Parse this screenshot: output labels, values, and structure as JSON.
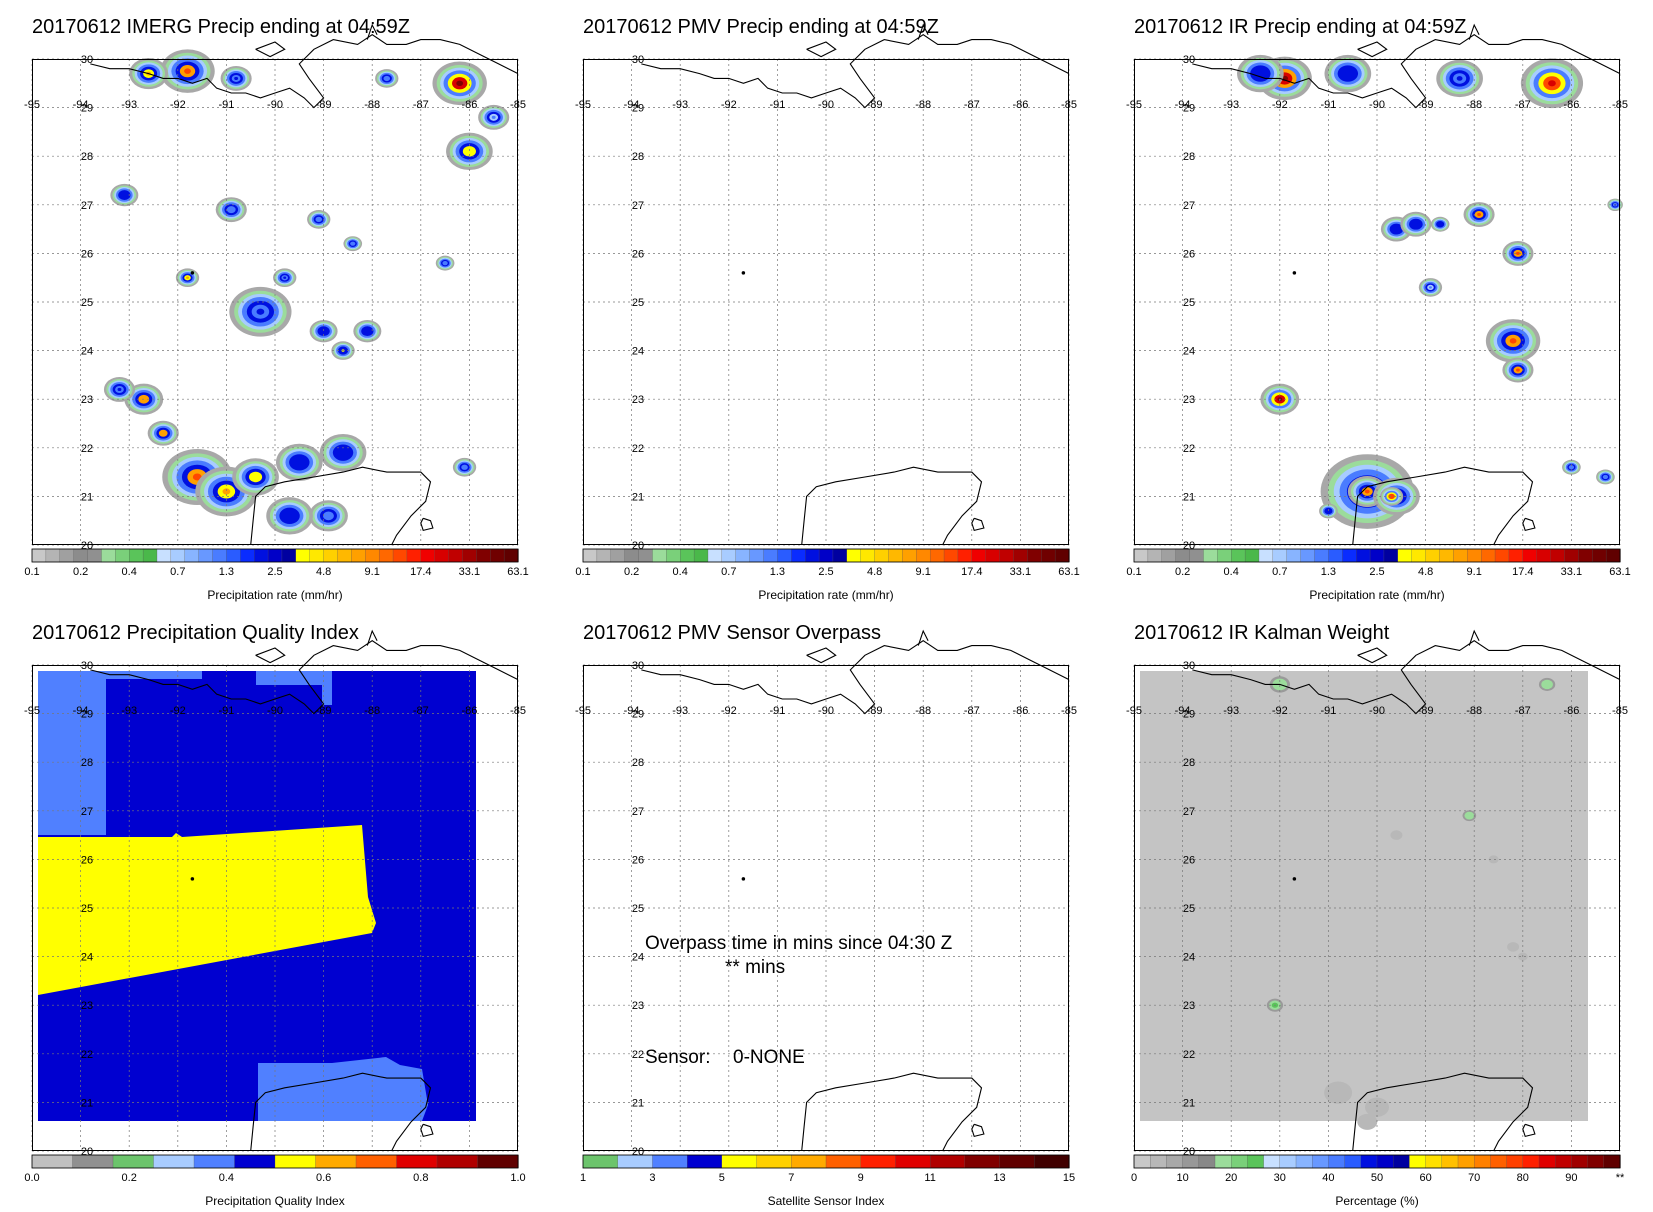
{
  "axes": {
    "lon": [
      -95,
      -94,
      -93,
      -92,
      -91,
      -90,
      -89,
      -88,
      -87,
      -86,
      -85
    ],
    "lat": [
      20,
      21,
      22,
      23,
      24,
      25,
      26,
      27,
      28,
      29,
      30
    ],
    "lon_labels": [
      "-95",
      "-94",
      "-93",
      "-92",
      "-91",
      "-90",
      "-89",
      "-88",
      "-87",
      "-86",
      "-85"
    ],
    "lat_labels": [
      "20",
      "21",
      "22",
      "23",
      "24",
      "25",
      "26",
      "27",
      "28",
      "29",
      "30"
    ]
  },
  "colorbars": {
    "precip": {
      "title": "Precipitation rate (mm/hr)",
      "labels": [
        "0.1",
        "0.2",
        "0.4",
        "0.7",
        "1.3",
        "2.5",
        "4.8",
        "9.1",
        "17.4",
        "33.1",
        "63.1"
      ],
      "colors": [
        "#c8c8c8",
        "#b4b4b4",
        "#a0a0a0",
        "#8c8c8c",
        "#909090",
        "#9bdc9b",
        "#7ad07a",
        "#5ac45a",
        "#4ab84a",
        "#c8e0ff",
        "#a8ccff",
        "#88b4ff",
        "#6898ff",
        "#4a7cff",
        "#2a5cff",
        "#0a2cff",
        "#0010e0",
        "#0000c8",
        "#0000a0",
        "#ffff00",
        "#ffe800",
        "#ffd000",
        "#ffb800",
        "#ffa000",
        "#ff8800",
        "#ff6800",
        "#ff4800",
        "#ff2000",
        "#f00000",
        "#d80000",
        "#c00000",
        "#a00000",
        "#800000",
        "#700000",
        "#600000"
      ]
    },
    "pqi": {
      "title": "Precipitation Quality Index",
      "labels": [
        "0.0",
        "0.2",
        "0.4",
        "0.6",
        "0.8",
        "1.0"
      ],
      "colors": [
        "#c0c0c0",
        "#909090",
        "#6cc46c",
        "#a8ccff",
        "#5080ff",
        "#0000d0",
        "#ffff00",
        "#ffaa00",
        "#ff6000",
        "#e00000",
        "#b00000",
        "#600000"
      ]
    },
    "sensor": {
      "title": "Satellite Sensor Index",
      "labels": [
        "1",
        "3",
        "5",
        "7",
        "9",
        "11",
        "13",
        "15"
      ],
      "colors": [
        "#6cc46c",
        "#a8ccff",
        "#5080ff",
        "#0000d0",
        "#ffff00",
        "#ffd000",
        "#ffaa00",
        "#ff6000",
        "#ff2000",
        "#e00000",
        "#b00000",
        "#800000",
        "#600000",
        "#400000"
      ]
    },
    "kalman": {
      "title": "Percentage (%)",
      "labels": [
        "0",
        "10",
        "20",
        "30",
        "40",
        "50",
        "60",
        "70",
        "80",
        "90",
        "**"
      ],
      "colors": [
        "#c8c8c8",
        "#b8b8b8",
        "#a8a8a8",
        "#989898",
        "#888888",
        "#9bdc9b",
        "#7ad07a",
        "#5ac45a",
        "#c8e0ff",
        "#a8ccff",
        "#88b4ff",
        "#6898ff",
        "#4a7cff",
        "#2a5cff",
        "#0010e0",
        "#0000c8",
        "#0000a0",
        "#ffff00",
        "#ffe000",
        "#ffc000",
        "#ffa000",
        "#ff8000",
        "#ff6000",
        "#ff4000",
        "#ff2000",
        "#e00000",
        "#c00000",
        "#a00000",
        "#800000",
        "#600000"
      ]
    }
  },
  "panels": [
    {
      "title": "20170612 IMERG Precip ending at 04:59Z",
      "colorbar": "precip",
      "field": "imerg",
      "blobs": [
        {
          "lon": -91.8,
          "lat": 29.75,
          "r": 0.35,
          "v": 0.85
        },
        {
          "lon": -92.6,
          "lat": 29.7,
          "r": 0.25,
          "v": 0.75
        },
        {
          "lon": -90.8,
          "lat": 29.6,
          "r": 0.2,
          "v": 0.55
        },
        {
          "lon": -86.2,
          "lat": 29.5,
          "r": 0.35,
          "v": 0.95
        },
        {
          "lon": -87.7,
          "lat": 29.6,
          "r": 0.15,
          "v": 0.45
        },
        {
          "lon": -86.0,
          "lat": 28.1,
          "r": 0.3,
          "v": 0.72
        },
        {
          "lon": -85.5,
          "lat": 28.8,
          "r": 0.2,
          "v": 0.4
        },
        {
          "lon": -93.1,
          "lat": 27.2,
          "r": 0.18,
          "v": 0.6
        },
        {
          "lon": -90.9,
          "lat": 26.9,
          "r": 0.2,
          "v": 0.5
        },
        {
          "lon": -89.1,
          "lat": 26.7,
          "r": 0.15,
          "v": 0.5
        },
        {
          "lon": -88.4,
          "lat": 26.2,
          "r": 0.12,
          "v": 0.45
        },
        {
          "lon": -86.5,
          "lat": 25.8,
          "r": 0.12,
          "v": 0.5
        },
        {
          "lon": -91.8,
          "lat": 25.5,
          "r": 0.15,
          "v": 0.75
        },
        {
          "lon": -89.8,
          "lat": 25.5,
          "r": 0.15,
          "v": 0.55
        },
        {
          "lon": -90.3,
          "lat": 24.8,
          "r": 0.4,
          "v": 0.55
        },
        {
          "lon": -89.0,
          "lat": 24.4,
          "r": 0.18,
          "v": 0.65
        },
        {
          "lon": -88.1,
          "lat": 24.4,
          "r": 0.18,
          "v": 0.6
        },
        {
          "lon": -88.6,
          "lat": 24.0,
          "r": 0.15,
          "v": 0.7
        },
        {
          "lon": -92.7,
          "lat": 23.0,
          "r": 0.25,
          "v": 0.82
        },
        {
          "lon": -93.2,
          "lat": 23.2,
          "r": 0.2,
          "v": 0.55
        },
        {
          "lon": -92.3,
          "lat": 22.3,
          "r": 0.2,
          "v": 0.8
        },
        {
          "lon": -91.6,
          "lat": 21.4,
          "r": 0.45,
          "v": 0.84
        },
        {
          "lon": -91.0,
          "lat": 21.1,
          "r": 0.4,
          "v": 0.78
        },
        {
          "lon": -90.4,
          "lat": 21.4,
          "r": 0.3,
          "v": 0.72
        },
        {
          "lon": -89.5,
          "lat": 21.7,
          "r": 0.3,
          "v": 0.65
        },
        {
          "lon": -88.6,
          "lat": 21.9,
          "r": 0.3,
          "v": 0.6
        },
        {
          "lon": -88.9,
          "lat": 20.6,
          "r": 0.25,
          "v": 0.5
        },
        {
          "lon": -89.7,
          "lat": 20.6,
          "r": 0.3,
          "v": 0.6
        },
        {
          "lon": -86.1,
          "lat": 21.6,
          "r": 0.15,
          "v": 0.45
        }
      ]
    },
    {
      "title": "20170612 PMV Precip ending at 04:59Z",
      "colorbar": "precip",
      "field": "none",
      "blobs": []
    },
    {
      "title": "20170612 IR Precip ending at 04:59Z",
      "colorbar": "precip",
      "field": "ir",
      "blobs": [
        {
          "lon": -91.9,
          "lat": 29.6,
          "r": 0.35,
          "v": 0.97
        },
        {
          "lon": -92.4,
          "lat": 29.7,
          "r": 0.3,
          "v": 0.65
        },
        {
          "lon": -90.6,
          "lat": 29.7,
          "r": 0.3,
          "v": 0.6
        },
        {
          "lon": -88.3,
          "lat": 29.6,
          "r": 0.3,
          "v": 0.55
        },
        {
          "lon": -86.4,
          "lat": 29.5,
          "r": 0.4,
          "v": 0.9
        },
        {
          "lon": -89.6,
          "lat": 26.5,
          "r": 0.2,
          "v": 0.6
        },
        {
          "lon": -89.2,
          "lat": 26.6,
          "r": 0.2,
          "v": 0.65
        },
        {
          "lon": -88.7,
          "lat": 26.6,
          "r": 0.12,
          "v": 0.6
        },
        {
          "lon": -87.9,
          "lat": 26.8,
          "r": 0.2,
          "v": 0.85
        },
        {
          "lon": -87.1,
          "lat": 26.0,
          "r": 0.2,
          "v": 0.85
        },
        {
          "lon": -87.2,
          "lat": 24.2,
          "r": 0.35,
          "v": 0.85
        },
        {
          "lon": -87.1,
          "lat": 23.6,
          "r": 0.2,
          "v": 0.85
        },
        {
          "lon": -92.0,
          "lat": 23.0,
          "r": 0.25,
          "v": 0.95
        },
        {
          "lon": -85.1,
          "lat": 27.0,
          "r": 0.1,
          "v": 0.55
        },
        {
          "lon": -88.9,
          "lat": 25.3,
          "r": 0.15,
          "v": 0.4
        },
        {
          "lon": -90.2,
          "lat": 21.1,
          "r": 0.6,
          "v": 0.7
        },
        {
          "lon": -90.2,
          "lat": 21.1,
          "r": 0.25,
          "v": 0.85
        },
        {
          "lon": -89.6,
          "lat": 21.0,
          "r": 0.3,
          "v": 0.6
        },
        {
          "lon": -89.7,
          "lat": 21.0,
          "r": 0.15,
          "v": 0.88
        },
        {
          "lon": -91.0,
          "lat": 20.7,
          "r": 0.12,
          "v": 0.6
        },
        {
          "lon": -86.0,
          "lat": 21.6,
          "r": 0.12,
          "v": 0.45
        },
        {
          "lon": -85.3,
          "lat": 21.4,
          "r": 0.12,
          "v": 0.45
        }
      ]
    },
    {
      "title": "20170612 Precipitation Quality Index",
      "colorbar": "pqi",
      "field": "pqi",
      "blobs": []
    },
    {
      "title": "20170612 PMV Sensor Overpass",
      "colorbar": "sensor",
      "field": "none",
      "blobs": [],
      "overpass_text": "Overpass time in mins since 04:30 Z",
      "overpass_value": "** mins",
      "sensor_label": "Sensor:",
      "sensor_value": "0-NONE"
    },
    {
      "title": "20170612 IR Kalman Weight",
      "colorbar": "kalman",
      "field": "kalman",
      "blobs": [
        {
          "lon": -92.0,
          "lat": 29.6,
          "r": 0.15,
          "v": 0.2
        },
        {
          "lon": -86.5,
          "lat": 29.6,
          "r": 0.12,
          "v": 0.2
        },
        {
          "lon": -88.1,
          "lat": 26.9,
          "r": 0.1,
          "v": 0.2
        },
        {
          "lon": -92.1,
          "lat": 23.0,
          "r": 0.12,
          "v": 0.22
        }
      ]
    }
  ],
  "coast": {
    "gulf": [
      [
        -93.8,
        29.9
      ],
      [
        -93.4,
        29.8
      ],
      [
        -93.0,
        29.8
      ],
      [
        -92.6,
        29.7
      ],
      [
        -92.3,
        29.6
      ],
      [
        -92.0,
        29.6
      ],
      [
        -91.7,
        29.5
      ],
      [
        -91.4,
        29.6
      ],
      [
        -91.2,
        29.4
      ],
      [
        -90.9,
        29.3
      ],
      [
        -90.6,
        29.3
      ],
      [
        -90.3,
        29.2
      ],
      [
        -90.0,
        29.3
      ],
      [
        -89.7,
        29.4
      ],
      [
        -89.4,
        29.2
      ],
      [
        -89.2,
        29.0
      ],
      [
        -89.0,
        29.2
      ],
      [
        -89.3,
        29.6
      ],
      [
        -89.5,
        29.9
      ],
      [
        -89.2,
        30.2
      ],
      [
        -88.8,
        30.4
      ],
      [
        -88.3,
        30.3
      ],
      [
        -88.0,
        30.5
      ],
      [
        -87.7,
        30.3
      ],
      [
        -87.3,
        30.3
      ],
      [
        -87.0,
        30.4
      ],
      [
        -86.6,
        30.4
      ],
      [
        -86.2,
        30.3
      ],
      [
        -85.8,
        30.1
      ],
      [
        -85.4,
        29.9
      ],
      [
        -85.0,
        29.7
      ]
    ],
    "yucatan": [
      [
        -90.5,
        20.0
      ],
      [
        -90.45,
        20.5
      ],
      [
        -90.4,
        21.0
      ],
      [
        -90.2,
        21.2
      ],
      [
        -89.8,
        21.3
      ],
      [
        -89.2,
        21.4
      ],
      [
        -88.6,
        21.5
      ],
      [
        -88.2,
        21.6
      ],
      [
        -87.7,
        21.5
      ],
      [
        -87.3,
        21.5
      ],
      [
        -87.0,
        21.5
      ],
      [
        -86.8,
        21.3
      ],
      [
        -86.9,
        20.9
      ],
      [
        -87.2,
        20.6
      ],
      [
        -87.5,
        20.2
      ],
      [
        -87.6,
        20.0
      ]
    ],
    "cozumel": [
      [
        -86.95,
        20.55
      ],
      [
        -86.8,
        20.5
      ],
      [
        -86.75,
        20.35
      ],
      [
        -86.95,
        20.3
      ],
      [
        -87.0,
        20.45
      ],
      [
        -86.95,
        20.55
      ]
    ],
    "mobile_bay": [
      [
        -88.1,
        30.4
      ],
      [
        -88.0,
        30.7
      ],
      [
        -87.9,
        30.5
      ]
    ],
    "lake": [
      [
        -90.4,
        30.2
      ],
      [
        -90.0,
        30.35
      ],
      [
        -89.8,
        30.2
      ],
      [
        -90.1,
        30.05
      ],
      [
        -90.4,
        30.2
      ]
    ]
  }
}
